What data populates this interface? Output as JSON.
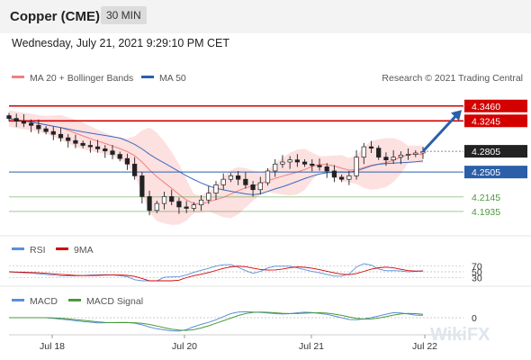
{
  "header": {
    "title": "Copper (CME)",
    "interval": "30 MIN"
  },
  "timestamp": "Wednesday, July 21, 2021 9:29:10 PM CET",
  "legend": {
    "bollinger": "MA 20 + Bollinger Bands",
    "ma50": "MA 50",
    "credit": "Research © 2021 Trading Central"
  },
  "rsi_legend": {
    "rsi": "RSI",
    "ma": "9MA"
  },
  "macd_legend": {
    "macd": "MACD",
    "signal": "MACD Signal"
  },
  "watermark": "WikiFX",
  "colors": {
    "resistance": "#d40000",
    "support": "#2b5fa8",
    "target_green": "#4a9a3a",
    "candle": "#222222",
    "bollinger_fill": "#fde0e0",
    "ma20": "#f08080",
    "ma50": "#3a6cc0",
    "arrow": "#2b5fa8",
    "last_price_bg": "#222222"
  },
  "chart_data": [
    {
      "type": "candlestick",
      "title": "Copper (CME)",
      "interval": "30 MIN",
      "x_ticks": [
        "Jul 18",
        "Jul 20",
        "Jul 21",
        "Jul 22"
      ],
      "ylim": [
        4.17,
        4.36
      ],
      "last_price": 4.2805,
      "levels": [
        {
          "label": "4.3460",
          "value": 4.346,
          "kind": "resistance",
          "line": true
        },
        {
          "label": "4.3245",
          "value": 4.3245,
          "kind": "resistance",
          "line": true
        },
        {
          "label": "4.2805",
          "value": 4.2805,
          "kind": "last",
          "line": false
        },
        {
          "label": "4.2505",
          "value": 4.2505,
          "kind": "support",
          "line": true
        },
        {
          "label": "4.2145",
          "value": 4.2145,
          "kind": "target",
          "line": true
        },
        {
          "label": "4.1935",
          "value": 4.1935,
          "kind": "target",
          "line": true
        }
      ],
      "forecast_arrow": {
        "from": 4.2805,
        "to": 4.3245
      },
      "closes": [
        4.328,
        4.324,
        4.321,
        4.318,
        4.313,
        4.309,
        4.305,
        4.3,
        4.296,
        4.292,
        4.289,
        4.287,
        4.284,
        4.281,
        4.276,
        4.27,
        4.262,
        4.245,
        4.215,
        4.195,
        4.205,
        4.215,
        4.208,
        4.2,
        4.198,
        4.203,
        4.21,
        4.22,
        4.232,
        4.24,
        4.245,
        4.24,
        4.232,
        4.225,
        4.235,
        4.252,
        4.262,
        4.265,
        4.268,
        4.265,
        4.262,
        4.26,
        4.258,
        4.252,
        4.243,
        4.24,
        4.245,
        4.272,
        4.287,
        4.285,
        4.272,
        4.268,
        4.272,
        4.275,
        4.276,
        4.278,
        4.28
      ],
      "series": [
        {
          "name": "MA 20 + Bollinger Bands",
          "values": []
        },
        {
          "name": "MA 50",
          "values": []
        }
      ]
    },
    {
      "type": "line",
      "series": [
        {
          "name": "RSI",
          "values": []
        },
        {
          "name": "9MA",
          "values": []
        }
      ],
      "y_ticks": [
        "70",
        "50",
        "30"
      ],
      "ylim": [
        20,
        80
      ]
    },
    {
      "type": "line",
      "series": [
        {
          "name": "MACD",
          "values": []
        },
        {
          "name": "MACD Signal",
          "values": []
        }
      ],
      "y_ticks": [
        "0"
      ]
    }
  ]
}
